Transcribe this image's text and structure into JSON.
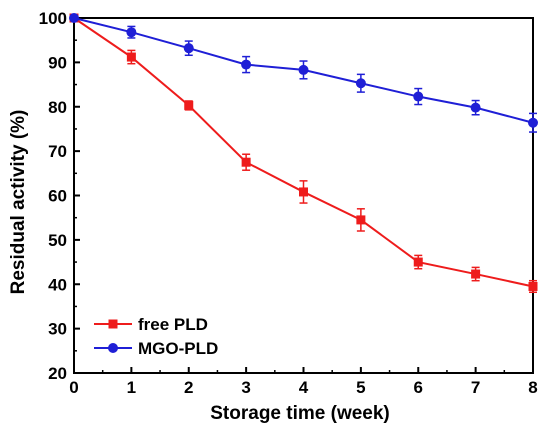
{
  "chart_data": {
    "type": "line",
    "xlabel": "Storage time (week)",
    "ylabel": "Residual activity (%)",
    "xlim": [
      0,
      8
    ],
    "ylim": [
      20,
      100
    ],
    "x_ticks": [
      0,
      1,
      2,
      3,
      4,
      5,
      6,
      7,
      8
    ],
    "y_ticks": [
      20,
      30,
      40,
      50,
      60,
      70,
      80,
      90,
      100
    ],
    "grid": false,
    "legend_position": "bottom-left",
    "series": [
      {
        "name": "free PLD",
        "color": "#ee1c1c",
        "marker": "square",
        "x": [
          0,
          1,
          2,
          3,
          4,
          5,
          6,
          7,
          8
        ],
        "y": [
          100,
          91.2,
          80.3,
          67.5,
          60.8,
          54.5,
          45.0,
          42.3,
          39.5
        ],
        "error": [
          0,
          1.5,
          1.0,
          1.8,
          2.5,
          2.5,
          1.5,
          1.5,
          1.3
        ]
      },
      {
        "name": "MGO-PLD",
        "color": "#1f1fd6",
        "marker": "circle",
        "x": [
          0,
          1,
          2,
          3,
          4,
          5,
          6,
          7,
          8
        ],
        "y": [
          100,
          96.8,
          93.2,
          89.5,
          88.3,
          85.3,
          82.3,
          79.8,
          76.4
        ],
        "error": [
          0,
          1.3,
          1.6,
          1.8,
          2.0,
          2.0,
          1.8,
          1.6,
          2.1
        ]
      }
    ]
  }
}
